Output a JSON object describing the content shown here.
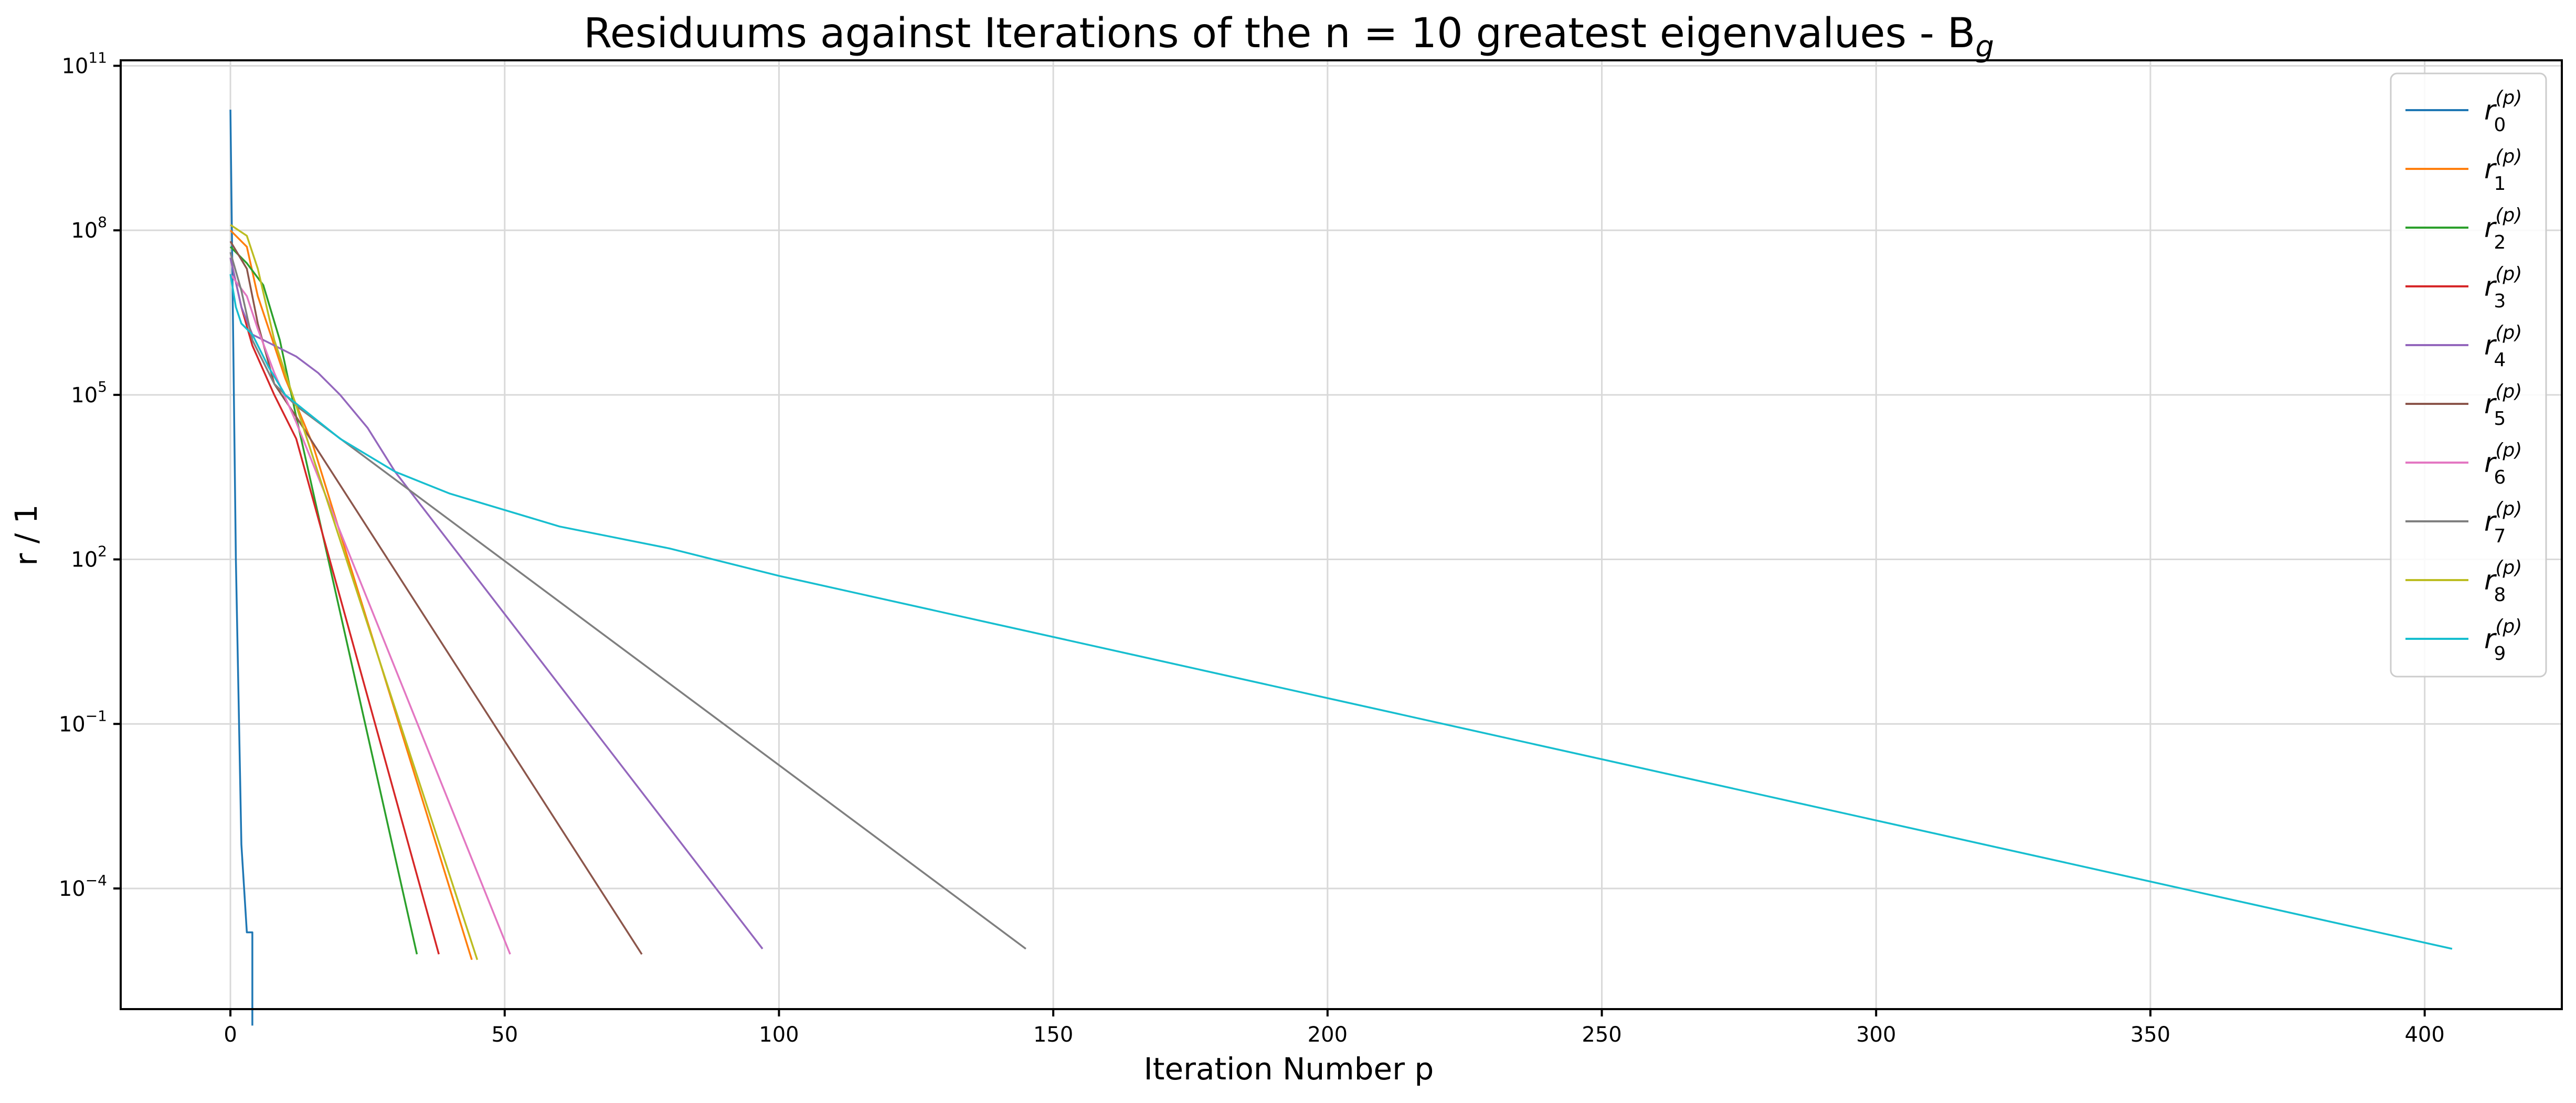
{
  "chart_data": {
    "type": "line",
    "title": "Residuums against Iterations of the n = 10 greatest eigenvalues - B",
    "title_sub": "g",
    "xlabel": "Iteration Number p",
    "ylabel": "r / 1",
    "xscale": "linear",
    "yscale": "log",
    "xlim": [
      -20,
      425
    ],
    "ylim_log10": [
      -6.2,
      11.1
    ],
    "x_ticks": [
      0,
      50,
      100,
      150,
      200,
      250,
      300,
      350,
      400
    ],
    "y_ticks_log10": [
      -4,
      -1,
      2,
      5,
      8,
      11
    ],
    "grid": true,
    "legend_position": "top-right",
    "series": [
      {
        "name": "r",
        "sub": "0",
        "sup": "(p)",
        "color": "#1f77b4",
        "x": [
          0,
          1,
          2,
          3,
          4,
          4,
          4
        ],
        "log10_y": [
          10.2,
          2.0,
          -3.2,
          -4.8,
          -4.8,
          -6.5,
          -6.5
        ]
      },
      {
        "name": "r",
        "sub": "1",
        "sup": "(p)",
        "color": "#ff7f0e",
        "x": [
          0,
          3,
          5,
          10,
          15,
          44
        ],
        "log10_y": [
          8.0,
          7.7,
          6.8,
          5.3,
          4.1,
          -5.3
        ]
      },
      {
        "name": "r",
        "sub": "2",
        "sup": "(p)",
        "color": "#2ca02c",
        "x": [
          0,
          3,
          6,
          9,
          12,
          34
        ],
        "log10_y": [
          7.7,
          7.4,
          7.0,
          6.0,
          4.6,
          -5.2
        ]
      },
      {
        "name": "r",
        "sub": "3",
        "sup": "(p)",
        "color": "#d62728",
        "x": [
          0,
          2,
          4,
          8,
          12,
          38
        ],
        "log10_y": [
          7.5,
          6.6,
          5.9,
          5.0,
          4.2,
          -5.2
        ]
      },
      {
        "name": "r",
        "sub": "4",
        "sup": "(p)",
        "color": "#9467bd",
        "x": [
          0,
          2,
          4,
          8,
          12,
          16,
          20,
          25,
          30,
          97
        ],
        "log10_y": [
          7.5,
          6.6,
          6.1,
          5.9,
          5.7,
          5.4,
          5.0,
          4.4,
          3.6,
          -5.1
        ]
      },
      {
        "name": "r",
        "sub": "5",
        "sup": "(p)",
        "color": "#8c564b",
        "x": [
          0,
          3,
          5,
          8,
          12,
          75
        ],
        "log10_y": [
          7.8,
          7.3,
          6.3,
          5.2,
          4.6,
          -5.2
        ]
      },
      {
        "name": "r",
        "sub": "6",
        "sup": "(p)",
        "color": "#e377c2",
        "x": [
          0,
          3,
          5,
          8,
          12,
          51
        ],
        "log10_y": [
          7.2,
          6.8,
          6.2,
          5.4,
          4.5,
          -5.2
        ]
      },
      {
        "name": "r",
        "sub": "7",
        "sup": "(p)",
        "color": "#7f7f7f",
        "x": [
          0,
          2,
          4,
          8,
          12,
          145
        ],
        "log10_y": [
          7.6,
          6.9,
          6.0,
          5.2,
          4.8,
          -5.1
        ]
      },
      {
        "name": "r",
        "sub": "8",
        "sup": "(p)",
        "color": "#bcbd22",
        "x": [
          0,
          3,
          5,
          8,
          12,
          45
        ],
        "log10_y": [
          8.1,
          7.9,
          7.3,
          6.0,
          4.8,
          -5.3
        ]
      },
      {
        "name": "r",
        "sub": "9",
        "sup": "(p)",
        "color": "#17becf",
        "x": [
          0,
          1,
          2,
          4,
          7,
          10,
          15,
          20,
          25,
          30,
          35,
          40,
          50,
          60,
          80,
          100,
          405
        ],
        "log10_y": [
          7.2,
          6.6,
          6.3,
          6.1,
          5.5,
          5.0,
          4.6,
          4.2,
          3.9,
          3.6,
          3.4,
          3.2,
          2.9,
          2.6,
          2.2,
          1.7,
          -5.1
        ]
      }
    ]
  }
}
